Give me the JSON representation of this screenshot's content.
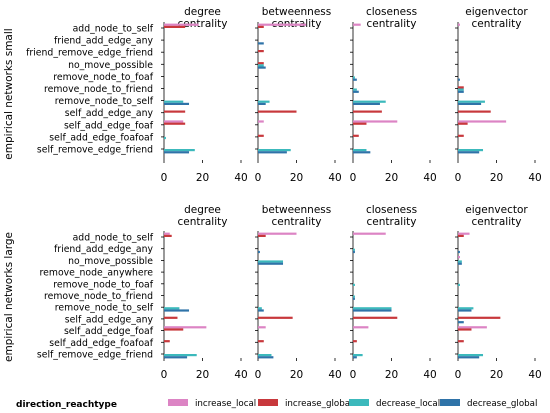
{
  "chart_data": {
    "type": "bar",
    "orientation": "horizontal",
    "columns": [
      "degree\ncentrality",
      "betweenness\ncentrality",
      "closeness\ncentrality",
      "eigenvector\ncentrality"
    ],
    "xlim": [
      0,
      40
    ],
    "xticks": [
      0,
      20,
      40
    ],
    "legend": {
      "title": "direction_reachtype",
      "placement": "bottom",
      "entries": [
        {
          "name": "increase_local",
          "color": "#dc84c4"
        },
        {
          "name": "increase_global",
          "color": "#c8383c"
        },
        {
          "name": "decrease_local",
          "color": "#3cb9bc"
        },
        {
          "name": "decrease_global",
          "color": "#2f73a8"
        }
      ]
    },
    "rows": [
      {
        "label": "empirical networks small",
        "categories": [
          "add_node_to_self",
          "friend_add_edge_any",
          "friend_remove_edge_friend",
          "no_move_possible",
          "remove_node_to_foaf",
          "remove_node_to_friend",
          "remove_node_to_self",
          "self_add_edge_any",
          "self_add_edge_foaf",
          "self_add_edge_foafoaf",
          "self_remove_edge_friend"
        ],
        "panels": [
          {
            "increase_local": [
              18,
              0,
              0,
              0,
              0,
              0,
              0,
              0,
              10,
              0,
              0
            ],
            "increase_global": [
              11,
              0,
              0,
              0,
              0,
              0,
              0,
              11,
              11,
              0,
              0
            ],
            "decrease_local": [
              0,
              0,
              0,
              0,
              0,
              0,
              10,
              0,
              0,
              1,
              16
            ],
            "decrease_global": [
              0,
              0,
              0,
              0,
              0,
              0,
              13,
              0,
              0,
              0,
              13
            ]
          },
          {
            "increase_local": [
              25,
              0,
              0,
              0,
              0,
              0,
              0,
              0,
              3,
              0,
              0
            ],
            "increase_global": [
              3,
              0,
              3,
              3,
              0,
              0,
              0,
              20,
              0,
              3,
              0
            ],
            "decrease_local": [
              0,
              0,
              0,
              3,
              0,
              0,
              6,
              0,
              0,
              0,
              17
            ],
            "decrease_global": [
              0,
              3,
              0,
              4,
              0,
              0,
              4,
              0,
              0,
              0,
              15
            ]
          },
          {
            "increase_local": [
              4,
              0,
              0,
              0,
              0,
              0,
              0,
              0,
              23,
              0,
              0
            ],
            "increase_global": [
              0,
              0,
              0,
              0,
              0,
              0,
              0,
              15,
              7,
              3,
              0
            ],
            "decrease_local": [
              0,
              0,
              0,
              0,
              1,
              2,
              17,
              0,
              0,
              0,
              7
            ],
            "decrease_global": [
              0,
              0,
              0,
              0,
              2,
              3,
              14,
              0,
              0,
              0,
              9
            ]
          },
          {
            "increase_local": [
              1,
              0,
              0,
              0,
              0,
              0,
              0,
              0,
              25,
              0,
              0
            ],
            "increase_global": [
              0,
              0,
              0,
              0,
              0,
              3,
              0,
              17,
              5,
              3,
              0
            ],
            "decrease_local": [
              0,
              0,
              0,
              0,
              0,
              3,
              14,
              0,
              0,
              0,
              13
            ],
            "decrease_global": [
              0,
              0,
              0,
              0,
              1,
              3,
              12,
              0,
              0,
              0,
              11
            ]
          }
        ]
      },
      {
        "label": "empirical networks large",
        "categories": [
          "add_node_to_self",
          "friend_add_edge_any",
          "no_move_possible",
          "remove_node_anywhere",
          "remove_node_to_foaf",
          "remove_node_to_friend",
          "remove_node_to_self",
          "self_add_edge_any",
          "self_add_edge_foaf",
          "self_add_edge_foafoaf",
          "self_remove_edge_friend"
        ],
        "panels": [
          {
            "increase_local": [
              3,
              0,
              0,
              0,
              0,
              0,
              0,
              0,
              22,
              0,
              0
            ],
            "increase_global": [
              4,
              0,
              0,
              0,
              0,
              0,
              0,
              7,
              10,
              3,
              0
            ],
            "decrease_local": [
              0,
              0,
              0,
              0,
              0,
              0,
              8,
              0,
              0,
              0,
              17
            ],
            "decrease_global": [
              0,
              0,
              0,
              0,
              0,
              0,
              13,
              0,
              0,
              0,
              12
            ]
          },
          {
            "increase_local": [
              20,
              0,
              0,
              0,
              0,
              0,
              0,
              0,
              4,
              0,
              0
            ],
            "increase_global": [
              4,
              0,
              0,
              0,
              0,
              0,
              0,
              18,
              0,
              3,
              0
            ],
            "decrease_local": [
              0,
              0,
              13,
              0,
              0,
              0,
              2,
              0,
              0,
              0,
              7
            ],
            "decrease_global": [
              0,
              1,
              13,
              0,
              0,
              0,
              3,
              0,
              0,
              0,
              8
            ]
          },
          {
            "increase_local": [
              17,
              0,
              0,
              0,
              0,
              0,
              0,
              0,
              8,
              0,
              0
            ],
            "increase_global": [
              0,
              0,
              0,
              0,
              0,
              0,
              0,
              23,
              0,
              2,
              0
            ],
            "decrease_local": [
              0,
              1,
              0,
              0,
              1,
              1,
              20,
              0,
              0,
              0,
              5
            ],
            "decrease_global": [
              0,
              1,
              0,
              0,
              0,
              1,
              20,
              0,
              0,
              0,
              2
            ]
          },
          {
            "increase_local": [
              6,
              0,
              1,
              0,
              0,
              0,
              0,
              0,
              15,
              0,
              0
            ],
            "increase_global": [
              3,
              0,
              0,
              0,
              0,
              0,
              0,
              22,
              7,
              3,
              0
            ],
            "decrease_local": [
              0,
              0,
              2,
              0,
              1,
              0,
              8,
              0,
              0,
              0,
              13
            ],
            "decrease_global": [
              0,
              1,
              2,
              0,
              0,
              0,
              7,
              3,
              0,
              0,
              11
            ]
          }
        ]
      }
    ]
  }
}
